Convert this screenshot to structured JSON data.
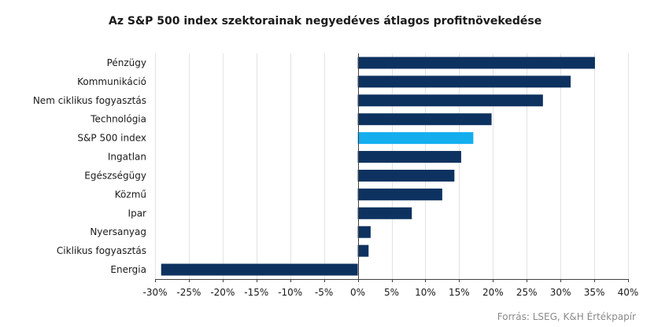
{
  "chart_data": {
    "type": "bar",
    "orientation": "horizontal",
    "title": "Az S&P 500 index szektorainak negyedéves átlagos profitnövekedése",
    "xlabel": "",
    "ylabel": "",
    "categories": [
      "Pénzügy",
      "Kommunikáció",
      "Nem ciklikus fogyasztás",
      "Technológia",
      "S&P 500 index",
      "Ingatlan",
      "Egészségügy",
      "Közmű",
      "Ipar",
      "Nyersanyag",
      "Ciklikus fogyasztás",
      "Energia"
    ],
    "values": [
      35.1,
      31.5,
      27.4,
      19.8,
      17.1,
      15.3,
      14.3,
      12.5,
      8.0,
      1.9,
      1.6,
      -29.1
    ],
    "xlim": [
      -30,
      40
    ],
    "ticks": [
      -30,
      -25,
      -20,
      -15,
      -10,
      -5,
      0,
      5,
      10,
      15,
      20,
      25,
      30,
      35,
      40
    ],
    "tick_format": "percent",
    "grid": "vertical",
    "colors": {
      "bar": "#0d3260",
      "highlight": "#14aeef",
      "grid": "#e3e3e3",
      "axis": "#404040"
    },
    "highlight_category": "S&P 500 index"
  },
  "source_note": "Forrás: LSEG, K&H Értékpapír"
}
